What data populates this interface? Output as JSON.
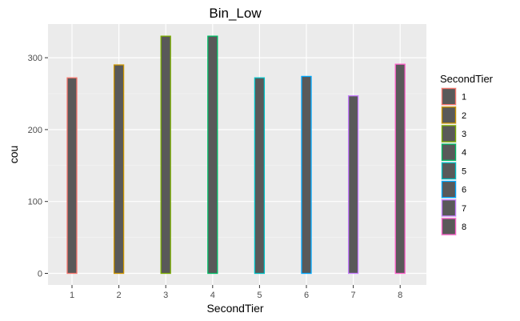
{
  "chart_data": {
    "type": "bar",
    "title": "Bin_Low",
    "xlabel": "SecondTier",
    "ylabel": "cou",
    "categories": [
      "1",
      "2",
      "3",
      "4",
      "5",
      "6",
      "7",
      "8"
    ],
    "values": [
      272,
      290,
      330,
      330,
      272,
      274,
      247,
      291
    ],
    "ylim": [
      0,
      345
    ],
    "yticks": [
      0,
      100,
      200,
      300
    ],
    "grid": true,
    "background": "#ebebeb",
    "bar_fill": "#595959",
    "bar_outline_colors": [
      "#f8766d",
      "#cd9600",
      "#7cae00",
      "#00be67",
      "#00bfc4",
      "#00a9ff",
      "#c77cff",
      "#ff61cc"
    ],
    "legend": {
      "title": "SecondTier",
      "placement": "right",
      "items": [
        "1",
        "2",
        "3",
        "4",
        "5",
        "6",
        "7",
        "8"
      ]
    }
  }
}
